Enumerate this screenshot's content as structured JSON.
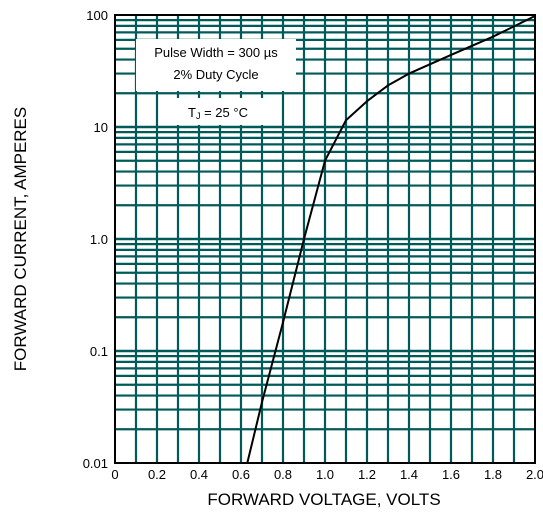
{
  "chart_data": {
    "type": "line",
    "xlabel": "FORWARD VOLTAGE, VOLTS",
    "ylabel": "FORWARD CURRENT, AMPERES",
    "xlim": [
      0,
      2.0
    ],
    "ylim": [
      0.01,
      100
    ],
    "y_scale": "log",
    "grid": true,
    "x_ticks": [
      {
        "value": 0,
        "label": "0"
      },
      {
        "value": 0.2,
        "label": "0.2"
      },
      {
        "value": 0.4,
        "label": "0.4"
      },
      {
        "value": 0.6,
        "label": "0.6"
      },
      {
        "value": 0.8,
        "label": "0.8"
      },
      {
        "value": 1.0,
        "label": "1.0"
      },
      {
        "value": 1.2,
        "label": "1.2"
      },
      {
        "value": 1.4,
        "label": "1.4"
      },
      {
        "value": 1.6,
        "label": "1.6"
      },
      {
        "value": 1.8,
        "label": "1.8"
      },
      {
        "value": 2.0,
        "label": "2.0"
      }
    ],
    "y_ticks": [
      {
        "value": 0.01,
        "label": "0.01"
      },
      {
        "value": 0.1,
        "label": "0.1"
      },
      {
        "value": 1,
        "label": "1.0"
      },
      {
        "value": 10,
        "label": "10"
      },
      {
        "value": 100,
        "label": "100"
      }
    ],
    "annotations": {
      "line1": "Pulse Width = 300 µs",
      "line2": "2% Duty Cycle",
      "tj_main": "T",
      "tj_sub": "J",
      "tj_rest": " = 25 °C"
    },
    "series": [
      {
        "x": [
          0.63,
          0.7,
          0.8,
          0.9,
          1.0,
          1.1,
          1.2,
          1.3,
          1.4,
          1.6,
          1.8,
          2.0
        ],
        "y": [
          0.01,
          0.035,
          0.18,
          1.0,
          5.0,
          11.5,
          17.0,
          23.5,
          30.0,
          44.0,
          64.0,
          98.0
        ]
      }
    ],
    "colors": {
      "grid": "#005a5a",
      "frame": "#000000",
      "curve": "#000000",
      "background": "#ffffff"
    }
  }
}
